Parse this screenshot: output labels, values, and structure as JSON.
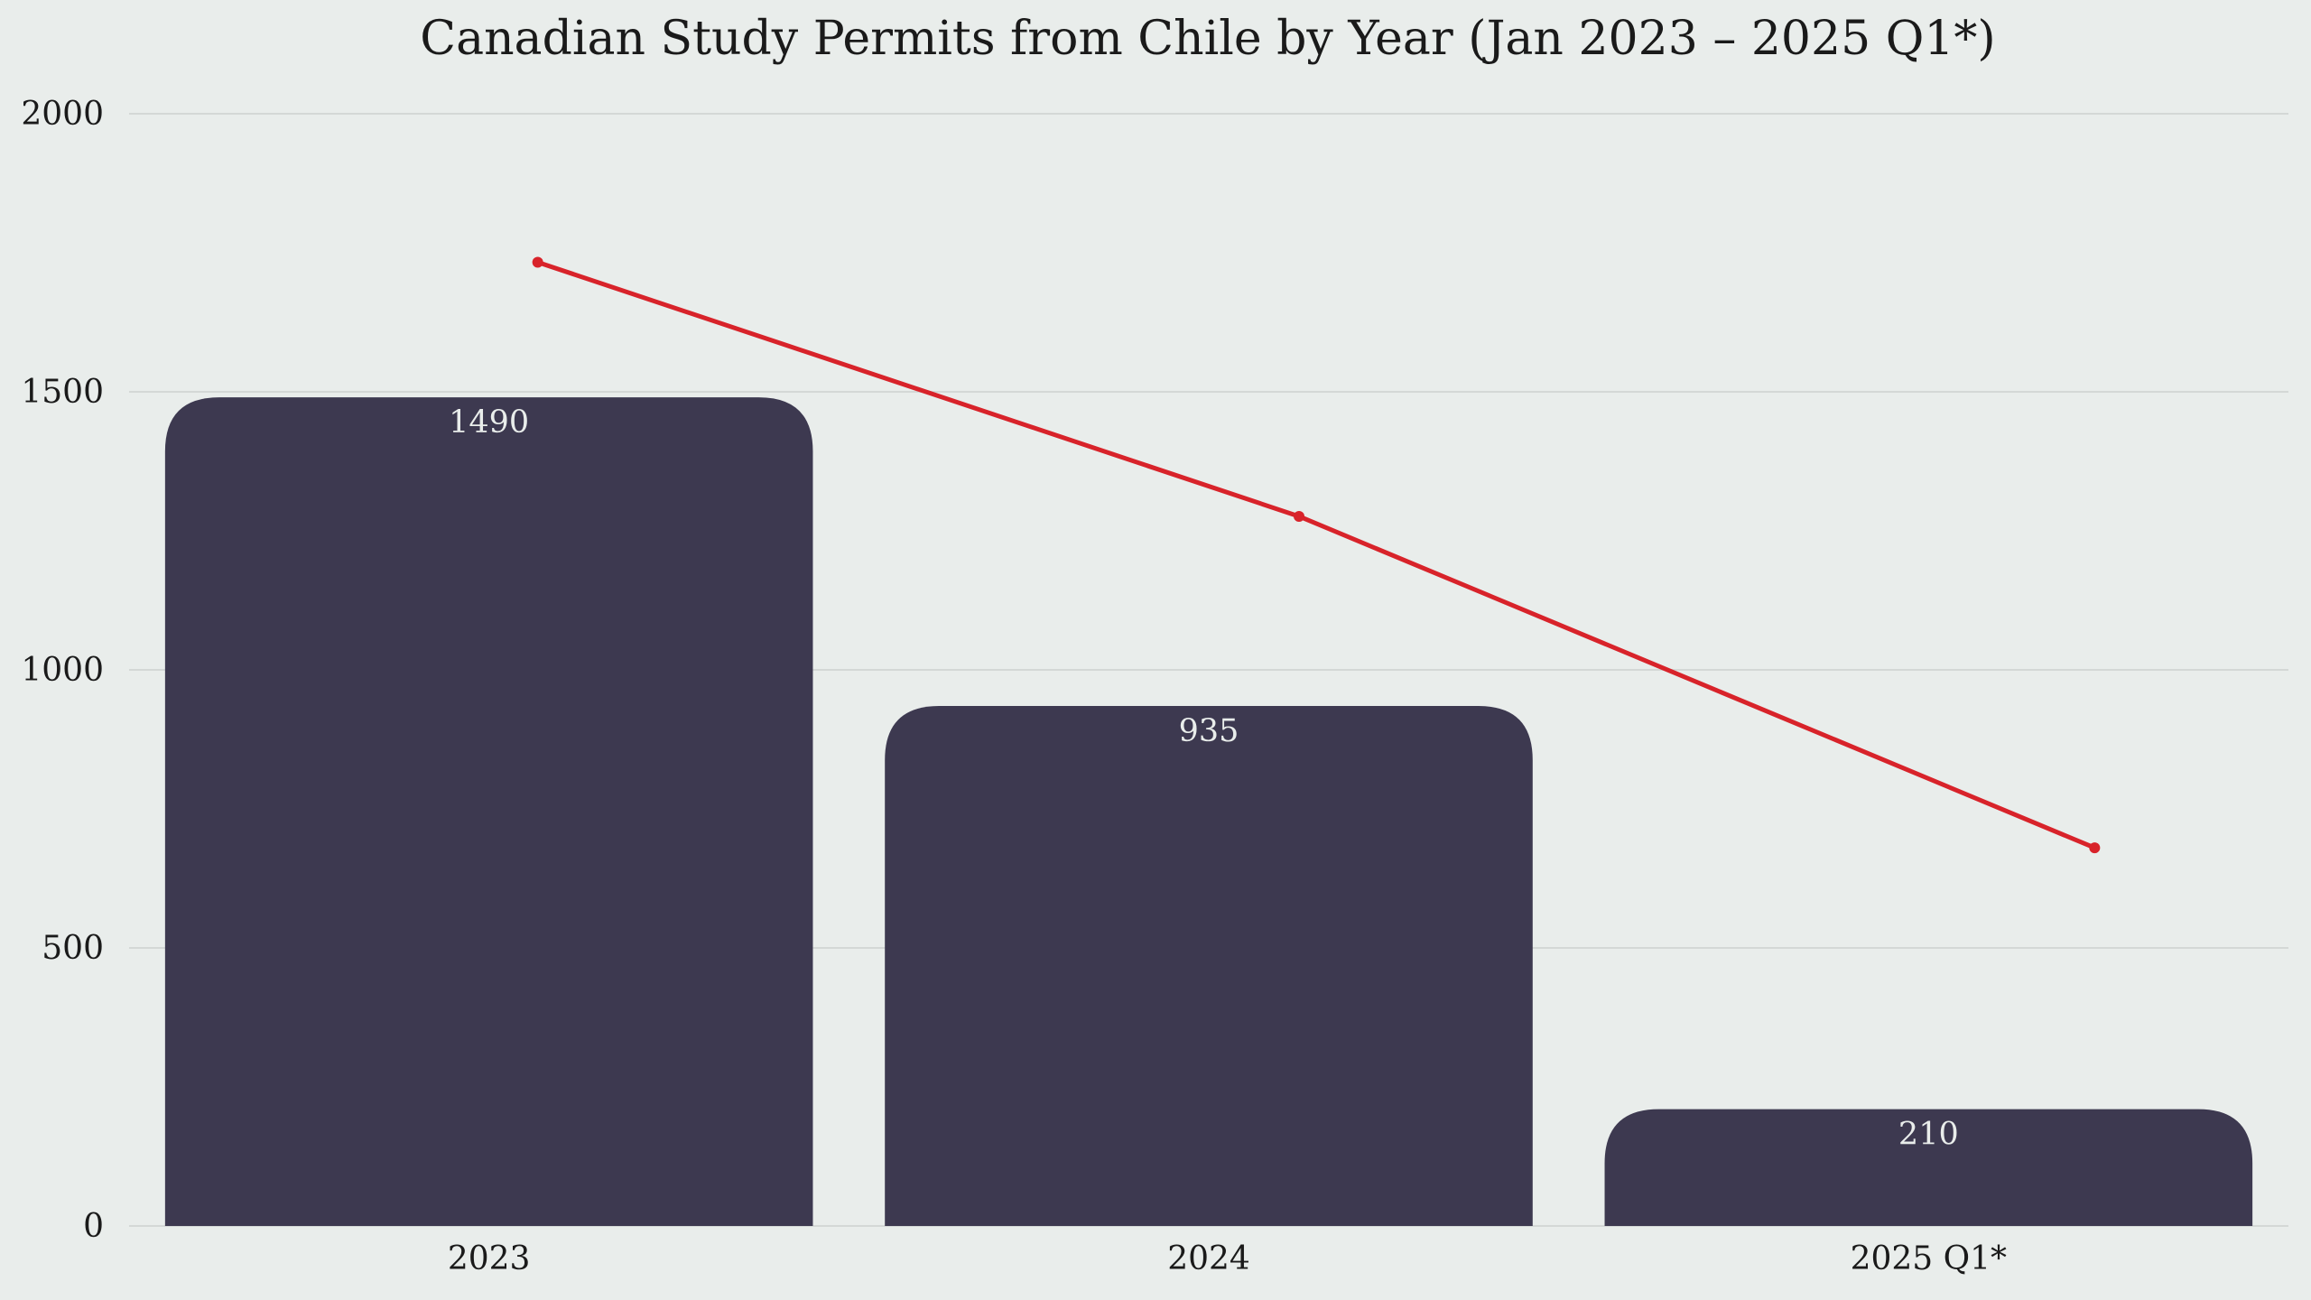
{
  "chart_data": {
    "type": "bar",
    "title": "Canadian Study Permits from Chile by Year (Jan 2023 – 2025 Q1*)",
    "xlabel": "",
    "ylabel": "",
    "categories": [
      "2023",
      "2024",
      "2025 Q1*"
    ],
    "series": [
      {
        "kind": "bar",
        "values": [
          1490,
          935,
          210
        ],
        "color": "#3d3950",
        "data_labels": [
          "1490",
          "935",
          "210"
        ]
      },
      {
        "kind": "line",
        "values": [
          1733,
          1276,
          680
        ],
        "color": "#d8232a"
      }
    ],
    "ylim": [
      0,
      2000
    ],
    "yticks": [
      0,
      500,
      1000,
      1500,
      2000
    ],
    "ytick_labels": [
      "0",
      "500",
      "1000",
      "1500",
      "2000"
    ],
    "grid": true,
    "legend": "none"
  }
}
